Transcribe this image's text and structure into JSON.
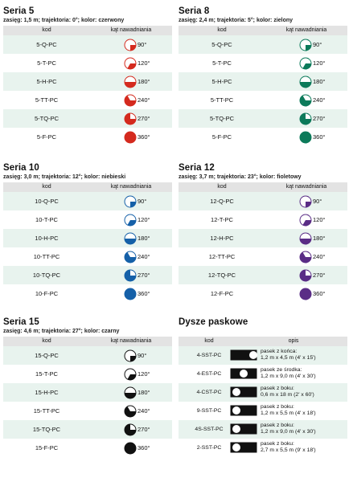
{
  "col_kod": "kod",
  "col_kat": "kąt nawadniania",
  "col_opis": "opis",
  "colors": {
    "red": "#d42a1e",
    "green": "#0c7a5a",
    "blue": "#1560a8",
    "purple": "#5a2d86",
    "black": "#111111"
  },
  "series": [
    {
      "title": "Seria 5",
      "subtitle": "zasięg: 1,5 m; trajektoria: 0°; kolor: czerwony",
      "color": "red",
      "rows": [
        {
          "code": "5-Q-PC",
          "angle": "90°"
        },
        {
          "code": "5-T-PC",
          "angle": "120°"
        },
        {
          "code": "5-H-PC",
          "angle": "180°"
        },
        {
          "code": "5-TT-PC",
          "angle": "240°"
        },
        {
          "code": "5-TQ-PC",
          "angle": "270°"
        },
        {
          "code": "5-F-PC",
          "angle": "360°"
        }
      ]
    },
    {
      "title": "Seria 8",
      "subtitle": "zasięg: 2,4 m; trajektoria: 5°; kolor: zielony",
      "color": "green",
      "rows": [
        {
          "code": "5-Q-PC",
          "angle": "90°"
        },
        {
          "code": "5-T-PC",
          "angle": "120°"
        },
        {
          "code": "5-H-PC",
          "angle": "180°"
        },
        {
          "code": "5-TT-PC",
          "angle": "240°"
        },
        {
          "code": "5-TQ-PC",
          "angle": "270°"
        },
        {
          "code": "5-F-PC",
          "angle": "360°"
        }
      ]
    },
    {
      "title": "Seria 10",
      "subtitle": "zasięg: 3,0 m; trajektoria: 12°; kolor: niebieski",
      "color": "blue",
      "rows": [
        {
          "code": "10-Q-PC",
          "angle": "90°"
        },
        {
          "code": "10-T-PC",
          "angle": "120°"
        },
        {
          "code": "10-H-PC",
          "angle": "180°"
        },
        {
          "code": "10-TT-PC",
          "angle": "240°"
        },
        {
          "code": "10-TQ-PC",
          "angle": "270°"
        },
        {
          "code": "10-F-PC",
          "angle": "360°"
        }
      ]
    },
    {
      "title": "Seria 12",
      "subtitle": "zasięg: 3,7 m; trajektoria: 23°; kolor: fioletowy",
      "color": "purple",
      "rows": [
        {
          "code": "12-Q-PC",
          "angle": "90°"
        },
        {
          "code": "12-T-PC",
          "angle": "120°"
        },
        {
          "code": "12-H-PC",
          "angle": "180°"
        },
        {
          "code": "12-TT-PC",
          "angle": "240°"
        },
        {
          "code": "12-TQ-PC",
          "angle": "270°"
        },
        {
          "code": "12-F-PC",
          "angle": "360°"
        }
      ]
    },
    {
      "title": "Seria 15",
      "subtitle": "zasięg: 4,6 m; trajektoria: 27°; kolor: czarny",
      "color": "black",
      "rows": [
        {
          "code": "15-Q-PC",
          "angle": "90°"
        },
        {
          "code": "15-T-PC",
          "angle": "120°"
        },
        {
          "code": "15-H-PC",
          "angle": "180°"
        },
        {
          "code": "15-TT-PC",
          "angle": "240°"
        },
        {
          "code": "15-TQ-PC",
          "angle": "270°"
        },
        {
          "code": "15-F-PC",
          "angle": "360°"
        }
      ]
    }
  ],
  "strip": {
    "title": "Dysze paskowe",
    "rows": [
      {
        "code": "4-SST-PC",
        "icon": "strip-end",
        "l1": "pasek z końca:",
        "l2": "1,2 m x 4,5 m (4' x 15')"
      },
      {
        "code": "4-EST-PC",
        "icon": "strip-center",
        "l1": "pasek ze środka:",
        "l2": "1,2 m x 9,0 m (4' x 30')"
      },
      {
        "code": "4-CST-PC",
        "icon": "strip-side",
        "l1": "pasek z boku:",
        "l2": "0,6 m x 18 m (2' x 60')"
      },
      {
        "code": "9-SST-PC",
        "icon": "strip-side",
        "l1": "pasek z boku:",
        "l2": "1,2 m x 5,5 m (4' x 18')"
      },
      {
        "code": "4S-SST-PC",
        "icon": "strip-side",
        "l1": "pasek z boku:",
        "l2": "1,2 m x 9,0 m (4' x 30')"
      },
      {
        "code": "2-SST-PC",
        "icon": "strip-side",
        "l1": "pasek z boku:",
        "l2": "2,7 m x 5,5 m (9' x 18')"
      }
    ]
  }
}
